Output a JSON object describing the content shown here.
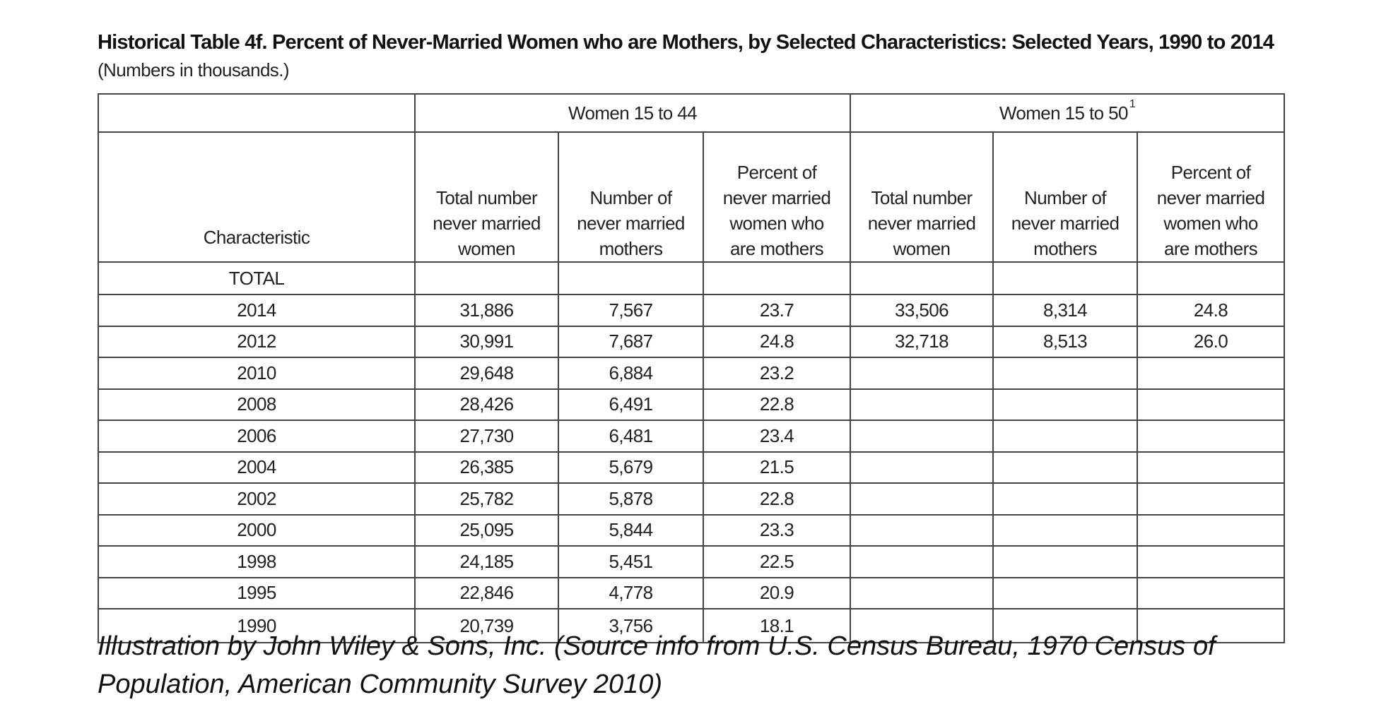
{
  "title": "Historical Table 4f.  Percent of Never-Married Women who are Mothers, by Selected Characteristics:  Selected Years, 1990 to 2014",
  "subtitle": "(Numbers in thousands.)",
  "table": {
    "group_headers": {
      "left_group": "Women 15 to 44",
      "right_group": "Women 15 to 50",
      "right_group_footnote": "1"
    },
    "column_headers": {
      "characteristic": "Characteristic",
      "total_number_l1": "Total number",
      "total_number_l2": "never married",
      "total_number_l3": "women",
      "number_of_l1": "Number of",
      "number_of_l2": "never married",
      "number_of_l3": "mothers",
      "percent_l1": "Percent of",
      "percent_l2": "never married",
      "percent_l3": "women who",
      "percent_l4": "are mothers"
    },
    "section_label": "TOTAL",
    "rows": [
      {
        "year": "2014",
        "total_44": "31,886",
        "mothers_44": "7,567",
        "pct_44": "23.7",
        "total_50": "33,506",
        "mothers_50": "8,314",
        "pct_50": "24.8"
      },
      {
        "year": "2012",
        "total_44": "30,991",
        "mothers_44": "7,687",
        "pct_44": "24.8",
        "total_50": "32,718",
        "mothers_50": "8,513",
        "pct_50": "26.0"
      },
      {
        "year": "2010",
        "total_44": "29,648",
        "mothers_44": "6,884",
        "pct_44": "23.2",
        "total_50": "",
        "mothers_50": "",
        "pct_50": ""
      },
      {
        "year": "2008",
        "total_44": "28,426",
        "mothers_44": "6,491",
        "pct_44": "22.8",
        "total_50": "",
        "mothers_50": "",
        "pct_50": ""
      },
      {
        "year": "2006",
        "total_44": "27,730",
        "mothers_44": "6,481",
        "pct_44": "23.4",
        "total_50": "",
        "mothers_50": "",
        "pct_50": ""
      },
      {
        "year": "2004",
        "total_44": "26,385",
        "mothers_44": "5,679",
        "pct_44": "21.5",
        "total_50": "",
        "mothers_50": "",
        "pct_50": ""
      },
      {
        "year": "2002",
        "total_44": "25,782",
        "mothers_44": "5,878",
        "pct_44": "22.8",
        "total_50": "",
        "mothers_50": "",
        "pct_50": ""
      },
      {
        "year": "2000",
        "total_44": "25,095",
        "mothers_44": "5,844",
        "pct_44": "23.3",
        "total_50": "",
        "mothers_50": "",
        "pct_50": ""
      },
      {
        "year": "1998",
        "total_44": "24,185",
        "mothers_44": "5,451",
        "pct_44": "22.5",
        "total_50": "",
        "mothers_50": "",
        "pct_50": ""
      },
      {
        "year": "1995",
        "total_44": "22,846",
        "mothers_44": "4,778",
        "pct_44": "20.9",
        "total_50": "",
        "mothers_50": "",
        "pct_50": ""
      },
      {
        "year": "1990",
        "total_44": "20,739",
        "mothers_44": "3,756",
        "pct_44": "18.1",
        "total_50": "",
        "mothers_50": "",
        "pct_50": ""
      }
    ]
  },
  "caption": "Illustration by John Wiley & Sons, Inc. (Source info from U.S. Census Bureau, 1970 Census of Population, American Community Survey 2010)"
}
